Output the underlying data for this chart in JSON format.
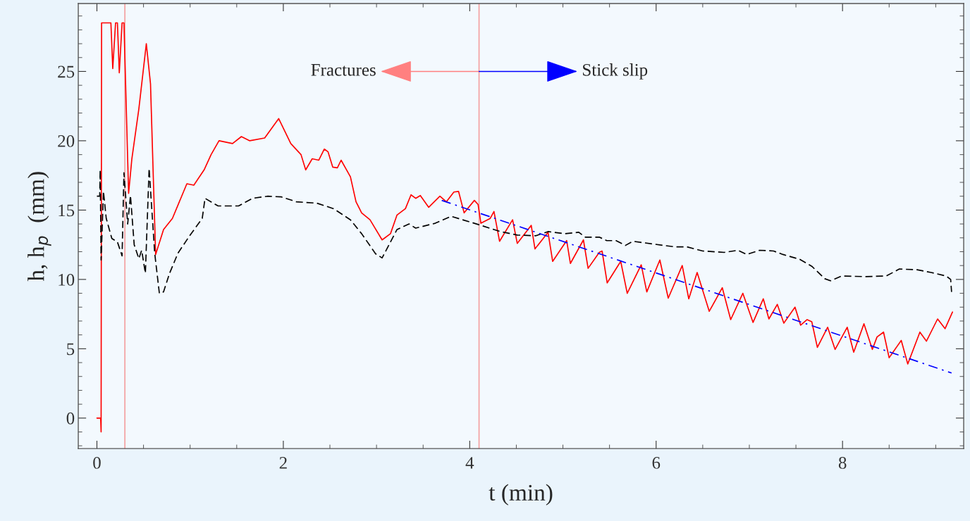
{
  "chart_data": {
    "type": "line",
    "xlabel": "t (min)",
    "ylabel": "h, h$_{p}$  (mm)",
    "xlim": [
      -0.2,
      9.3
    ],
    "ylim": [
      -2.2,
      29.9
    ],
    "xticks": [
      0,
      2,
      4,
      6,
      8
    ],
    "yticks": [
      0,
      5,
      10,
      15,
      20,
      25
    ],
    "grid": false,
    "series": [
      {
        "color": "#ff0000",
        "line_style": "solid",
        "x": [
          0,
          0.04,
          0.045,
          0.05,
          0.15,
          0.17,
          0.2,
          0.22,
          0.24,
          0.27,
          0.29,
          0.34,
          0.375,
          0.45,
          0.53,
          0.575,
          0.63,
          0.715,
          0.81,
          0.965,
          1.04,
          1.15,
          1.225,
          1.31,
          1.455,
          1.55,
          1.64,
          1.8,
          1.95,
          2.08,
          2.19,
          2.24,
          2.31,
          2.38,
          2.44,
          2.48,
          2.53,
          2.58,
          2.62,
          2.72,
          2.78,
          2.84,
          2.93,
          3.06,
          3.15,
          3.22,
          3.31,
          3.37,
          3.42,
          3.47,
          3.56,
          3.68,
          3.75,
          3.83,
          3.88,
          3.94,
          4.05,
          4.09,
          4.12,
          4.22,
          4.26,
          4.32,
          4.46,
          4.51,
          4.66,
          4.7,
          4.84,
          4.89,
          5.04,
          5.08,
          5.22,
          5.27,
          5.39,
          5.42,
          5.475,
          5.62,
          5.69,
          5.84,
          5.9,
          6.04,
          6.13,
          6.28,
          6.35,
          6.44,
          6.57,
          6.71,
          6.8,
          6.93,
          7.04,
          7.15,
          7.21,
          7.3,
          7.37,
          7.49,
          7.55,
          7.62,
          7.67,
          7.73,
          7.84,
          7.92,
          8.05,
          8.12,
          8.23,
          8.32,
          8.37,
          8.44,
          8.5,
          8.63,
          8.7,
          8.83,
          8.9,
          9.02,
          9.1,
          9.18
        ],
        "values": [
          0,
          0,
          -1,
          28.5,
          28.5,
          25.2,
          28.5,
          28.5,
          24.9,
          28.5,
          28.5,
          16.2,
          18.7,
          22.3,
          27.0,
          24.1,
          11.8,
          13.6,
          14.4,
          16.9,
          16.8,
          17.9,
          19.0,
          20.0,
          19.8,
          20.3,
          20.0,
          20.2,
          21.6,
          19.8,
          19.0,
          17.9,
          18.7,
          18.6,
          19.4,
          19.2,
          18.1,
          18.05,
          18.6,
          17.4,
          15.6,
          14.8,
          14.3,
          12.85,
          13.3,
          14.65,
          15.1,
          16.1,
          15.85,
          16.05,
          15.2,
          16.0,
          15.6,
          16.3,
          16.35,
          14.8,
          15.7,
          15.4,
          14.05,
          14.4,
          14.9,
          12.75,
          14.3,
          12.6,
          13.9,
          12.2,
          13.4,
          11.3,
          12.8,
          11.15,
          12.85,
          10.8,
          11.95,
          12.05,
          9.75,
          11.3,
          9.0,
          11.05,
          9.1,
          11.4,
          8.65,
          11.0,
          8.6,
          10.5,
          7.7,
          9.4,
          7.1,
          9.0,
          6.9,
          8.6,
          7.15,
          8.2,
          6.85,
          8.0,
          6.7,
          7.1,
          6.95,
          5.1,
          6.55,
          4.95,
          6.55,
          4.75,
          6.8,
          4.95,
          5.85,
          6.2,
          4.35,
          5.6,
          3.9,
          6.2,
          5.55,
          7.15,
          6.45,
          7.65
        ]
      },
      {
        "color": "#000000",
        "line_style": "dashed",
        "x": [
          0,
          0.03,
          0.035,
          0.045,
          0.07,
          0.1,
          0.16,
          0.22,
          0.27,
          0.29,
          0.33,
          0.36,
          0.4,
          0.45,
          0.48,
          0.52,
          0.56,
          0.62,
          0.67,
          0.715,
          0.78,
          0.87,
          0.995,
          1.13,
          1.16,
          1.3,
          1.52,
          1.67,
          1.83,
          1.98,
          2.14,
          2.36,
          2.54,
          2.72,
          2.84,
          2.99,
          3.06,
          3.15,
          3.22,
          3.35,
          3.42,
          3.63,
          3.8,
          4.0,
          4.12,
          4.33,
          4.51,
          4.71,
          4.84,
          5.02,
          5.17,
          5.24,
          5.39,
          5.47,
          5.57,
          5.67,
          5.75,
          5.97,
          6.2,
          6.33,
          6.5,
          6.73,
          6.88,
          6.97,
          7.11,
          7.26,
          7.36,
          7.54,
          7.67,
          7.81,
          7.87,
          7.99,
          8.25,
          8.47,
          8.61,
          8.8,
          8.95,
          9.11,
          9.16,
          9.17
        ],
        "values": [
          16.0,
          16.0,
          17.9,
          11.4,
          16.35,
          14.4,
          12.95,
          12.7,
          11.7,
          17.7,
          14.0,
          16.05,
          12.5,
          11.5,
          12.1,
          10.45,
          18.0,
          11.9,
          9.0,
          9.1,
          10.45,
          11.9,
          13.15,
          14.4,
          15.85,
          15.3,
          15.3,
          15.85,
          16.0,
          15.95,
          15.6,
          15.5,
          15.1,
          14.3,
          13.3,
          11.85,
          11.55,
          12.7,
          13.6,
          14.0,
          13.7,
          14.05,
          14.55,
          14.15,
          13.9,
          13.45,
          13.2,
          13.15,
          13.45,
          13.3,
          13.4,
          13.05,
          13.05,
          12.8,
          12.8,
          12.45,
          12.75,
          12.55,
          12.35,
          12.35,
          12.05,
          11.95,
          12.1,
          11.8,
          12.1,
          12.05,
          11.8,
          11.45,
          10.95,
          10.05,
          9.9,
          10.25,
          10.2,
          10.25,
          10.75,
          10.7,
          10.5,
          10.25,
          10.0,
          9.1
        ]
      },
      {
        "color": "#0000ff",
        "line_style": "dashdot",
        "x": [
          3.7,
          9.17
        ],
        "values": [
          15.7,
          3.25
        ]
      }
    ],
    "ref_lines": [
      {
        "axis": "x",
        "value": 0.3,
        "color": "#f4a0a0"
      },
      {
        "axis": "x",
        "value": 4.1,
        "color": "#f4a0a0"
      }
    ],
    "annotations": [
      {
        "text": "Fractures",
        "x": 4.1,
        "y": 25
      },
      {
        "text": "Stick slip",
        "x": 4.1,
        "y": 25
      }
    ]
  }
}
